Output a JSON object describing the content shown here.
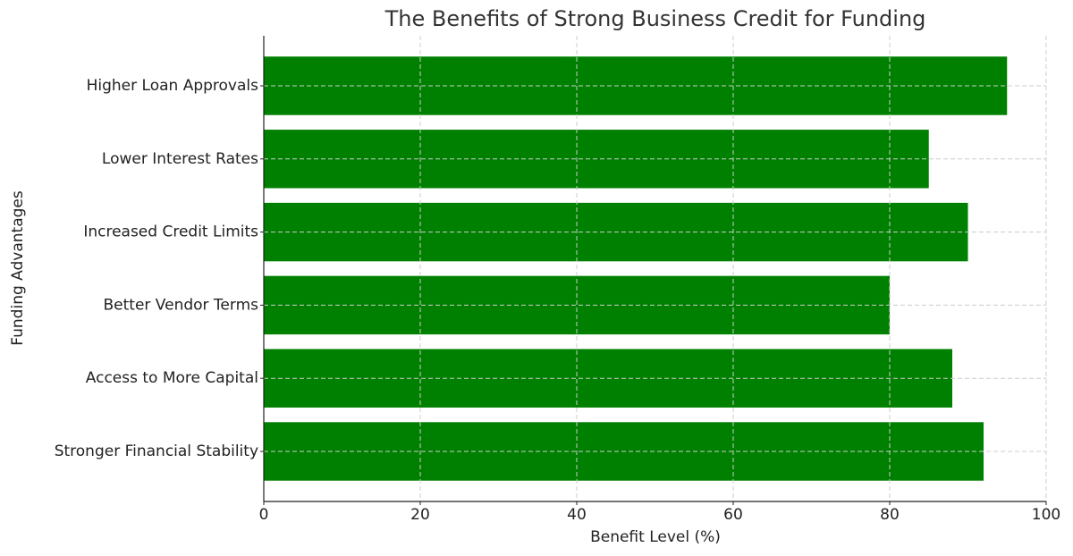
{
  "chart_data": {
    "type": "barh",
    "title": "The Benefits of Strong Business Credit for Funding",
    "x_label": "Benefit Level (%)",
    "y_label": "Funding Advantages",
    "categories": [
      "Higher Loan Approvals",
      "Lower Interest Rates",
      "Increased Credit Limits",
      "Better Vendor Terms",
      "Access to More Capital",
      "Stronger Financial Stability"
    ],
    "values": [
      95,
      85,
      90,
      80,
      88,
      92
    ],
    "color": "#008000",
    "xlim": [
      0,
      100
    ],
    "xticks": [
      0,
      20,
      40,
      60,
      80,
      100
    ],
    "grid": true
  }
}
